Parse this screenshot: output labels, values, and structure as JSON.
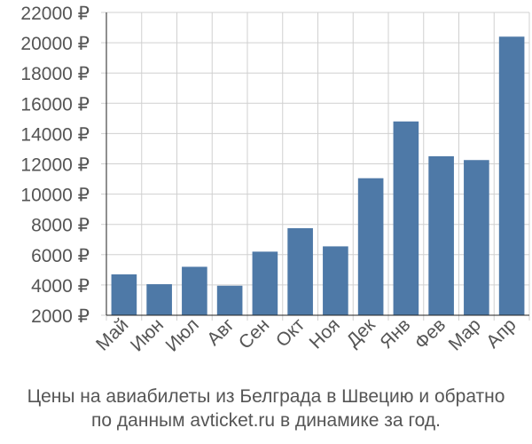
{
  "chart_data": {
    "type": "bar",
    "categories": [
      "Май",
      "Июн",
      "Июл",
      "Авг",
      "Сен",
      "Окт",
      "Ноя",
      "Дек",
      "Янв",
      "Фев",
      "Мар",
      "Апр"
    ],
    "values": [
      4700,
      4050,
      5200,
      3950,
      6200,
      7750,
      6550,
      11050,
      14800,
      12500,
      12250,
      20400
    ],
    "yticks": [
      "2000 ₽",
      "4000 ₽",
      "6000 ₽",
      "8000 ₽",
      "10000 ₽",
      "12000 ₽",
      "14000 ₽",
      "16000 ₽",
      "18000 ₽",
      "20000 ₽",
      "22000 ₽"
    ],
    "ylim": [
      2000,
      22000
    ],
    "grid": true,
    "bar_color": "#4e79a7",
    "grid_color": "#d0d0d0",
    "axis_color": "#222222",
    "label_color": "#555555"
  },
  "caption": {
    "line1": "Цены на авиабилеты из Белграда в Швецию и обратно",
    "line2": "по данным avticket.ru в динамике за год."
  }
}
